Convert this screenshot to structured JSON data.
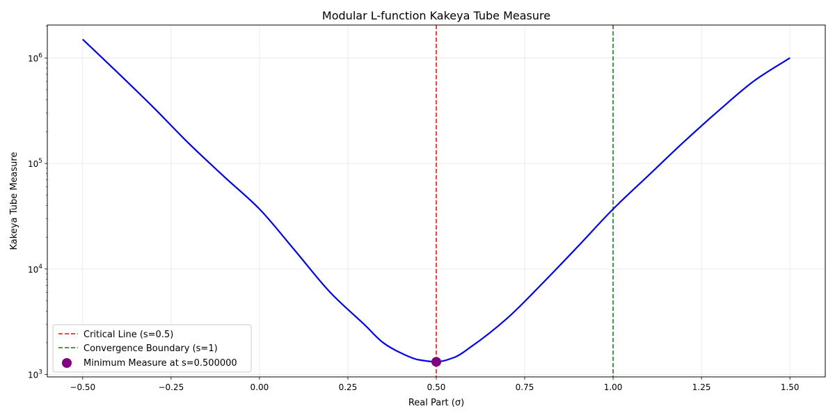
{
  "chart_data": {
    "type": "line",
    "title": "Modular L-function Kakeya Tube Measure",
    "xlabel": "Real Part (σ)",
    "ylabel": "Kakeya Tube Measure",
    "xlim": [
      -0.6,
      1.6
    ],
    "ylim": [
      950,
      2050000
    ],
    "yscale": "log",
    "grid": true,
    "legend_position": "lower-left",
    "x_ticks": [
      {
        "value": -0.5,
        "label": "−0.50"
      },
      {
        "value": -0.25,
        "label": "−0.25"
      },
      {
        "value": 0.0,
        "label": "0.00"
      },
      {
        "value": 0.25,
        "label": "0.25"
      },
      {
        "value": 0.5,
        "label": "0.50"
      },
      {
        "value": 0.75,
        "label": "0.75"
      },
      {
        "value": 1.0,
        "label": "1.00"
      },
      {
        "value": 1.25,
        "label": "1.25"
      },
      {
        "value": 1.5,
        "label": "1.50"
      }
    ],
    "y_ticks": [
      {
        "value": 1000,
        "base": "10",
        "exp": "3"
      },
      {
        "value": 10000,
        "base": "10",
        "exp": "4"
      },
      {
        "value": 100000,
        "base": "10",
        "exp": "5"
      },
      {
        "value": 1000000,
        "base": "10",
        "exp": "6"
      }
    ],
    "series": [
      {
        "color": "#0000ff",
        "x": [
          -0.5,
          -0.4,
          -0.3,
          -0.2,
          -0.1,
          0.0,
          0.1,
          0.2,
          0.3,
          0.35,
          0.4,
          0.45,
          0.5,
          0.55,
          0.6,
          0.7,
          0.8,
          0.9,
          1.0,
          1.1,
          1.2,
          1.3,
          1.4,
          1.5
        ],
        "y": [
          1500000,
          720000,
          340000,
          155000,
          75000,
          37000,
          15000,
          6000,
          2900,
          2000,
          1600,
          1380,
          1320,
          1450,
          1850,
          3400,
          7300,
          16300,
          37000,
          77000,
          160000,
          320000,
          610000,
          1000000
        ]
      }
    ],
    "vlines": [
      {
        "x": 0.5,
        "color": "#ff0000",
        "style": "dashed",
        "label": "Critical Line (s=0.5)"
      },
      {
        "x": 1.0,
        "color": "#008000",
        "style": "dashed",
        "label": "Convergence Boundary (s=1)"
      }
    ],
    "points": [
      {
        "x": 0.5,
        "y": 1320,
        "color": "#800080",
        "label": "Minimum Measure at s=0.500000"
      }
    ]
  }
}
